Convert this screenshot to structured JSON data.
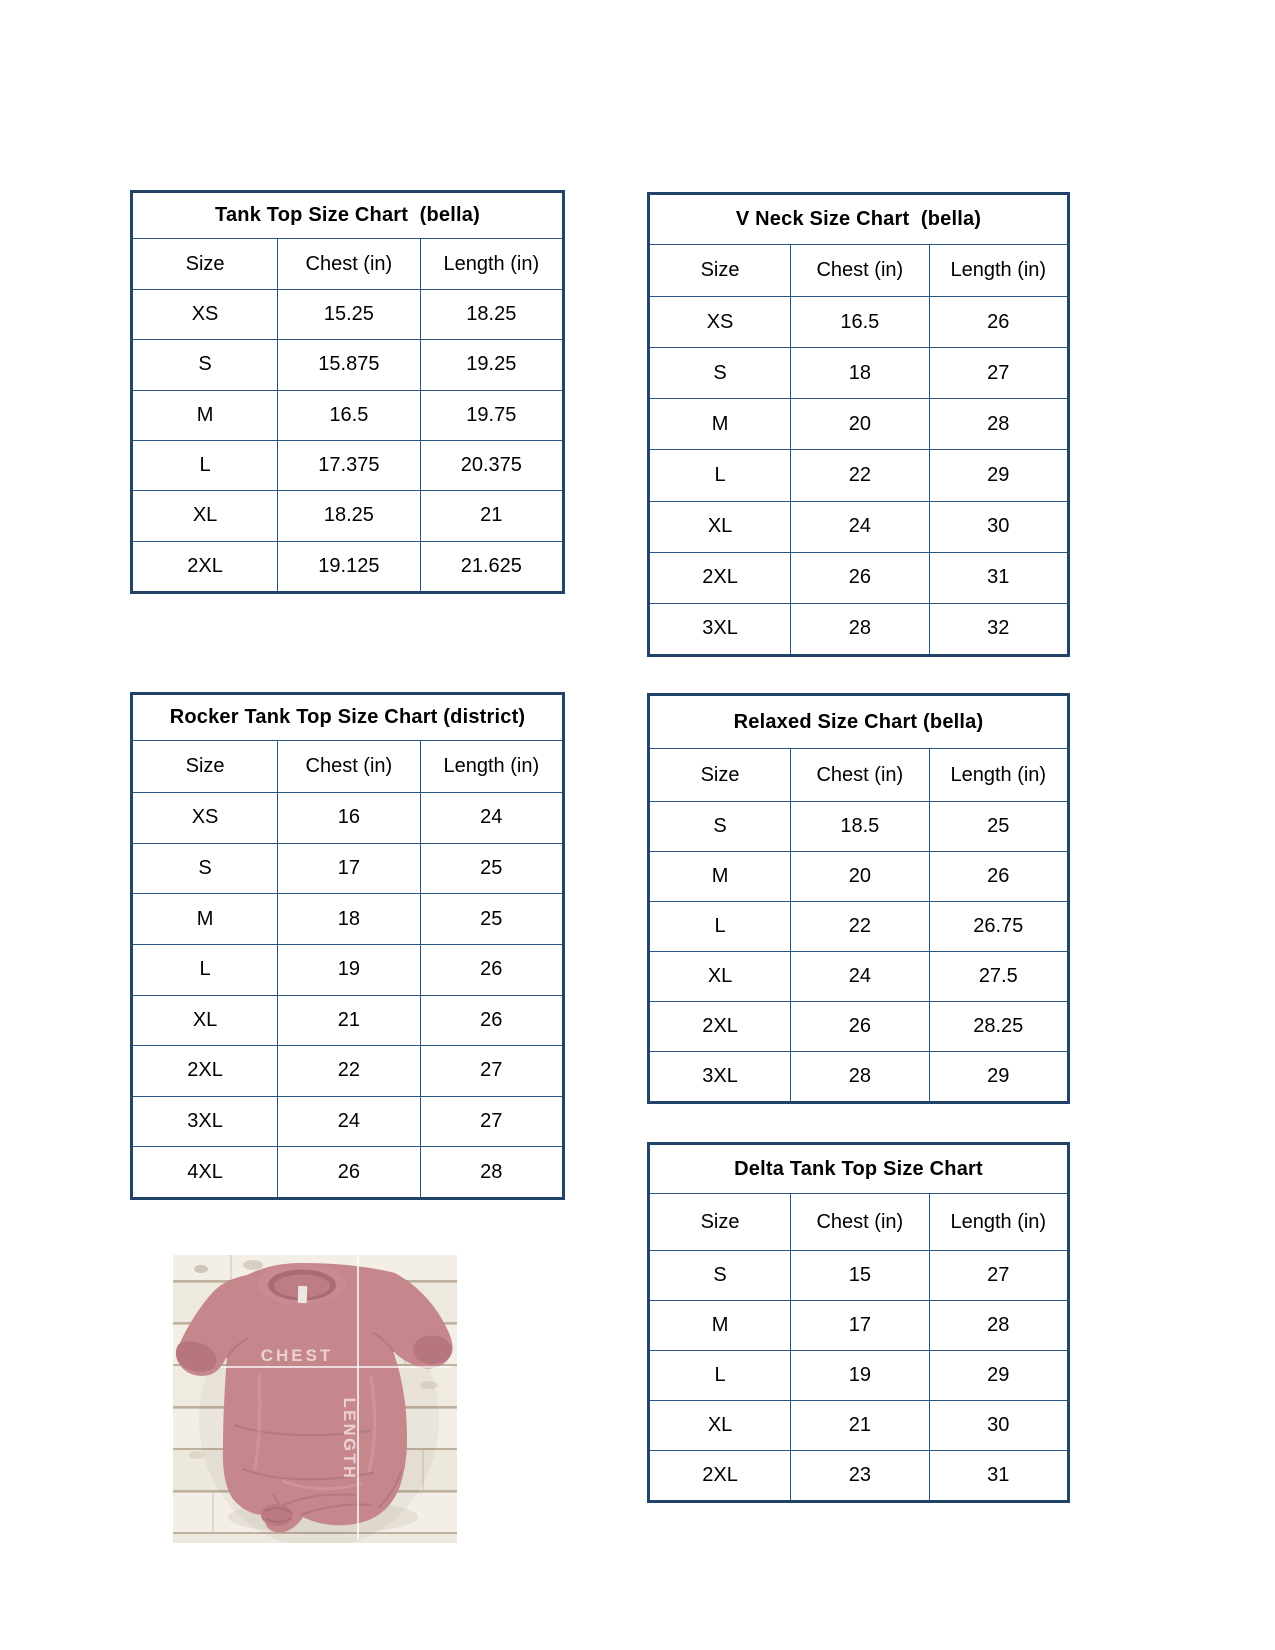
{
  "colors": {
    "table_border_outer": "#21456a",
    "table_border_inner": "#2b5584",
    "text": "#000000",
    "page_background": "#ffffff",
    "shirt_color": "#c5868c",
    "shirt_shadow": "#a86d76",
    "wood_color": "#f3efe7",
    "measure_line_color": "#ffffff"
  },
  "tables": [
    {
      "name": "tank-top-bella",
      "title": "Tank Top Size Chart  (bella)",
      "headers": [
        "Size",
        "Chest (in)",
        "Length (in)"
      ],
      "rows": [
        [
          "XS",
          "15.25",
          "18.25"
        ],
        [
          "S",
          "15.875",
          "19.25"
        ],
        [
          "M",
          "16.5",
          "19.75"
        ],
        [
          "L",
          "17.375",
          "20.375"
        ],
        [
          "XL",
          "18.25",
          "21"
        ],
        [
          "2XL",
          "19.125",
          "21.625"
        ]
      ]
    },
    {
      "name": "v-neck-bella",
      "title": "V Neck Size Chart  (bella)",
      "headers": [
        "Size",
        "Chest (in)",
        "Length (in)"
      ],
      "rows": [
        [
          "XS",
          "16.5",
          "26"
        ],
        [
          "S",
          "18",
          "27"
        ],
        [
          "M",
          "20",
          "28"
        ],
        [
          "L",
          "22",
          "29"
        ],
        [
          "XL",
          "24",
          "30"
        ],
        [
          "2XL",
          "26",
          "31"
        ],
        [
          "3XL",
          "28",
          "32"
        ]
      ]
    },
    {
      "name": "rocker-tank-top-district",
      "title": "Rocker Tank Top Size Chart (district)",
      "headers": [
        "Size",
        "Chest (in)",
        "Length (in)"
      ],
      "rows": [
        [
          "XS",
          "16",
          "24"
        ],
        [
          "S",
          "17",
          "25"
        ],
        [
          "M",
          "18",
          "25"
        ],
        [
          "L",
          "19",
          "26"
        ],
        [
          "XL",
          "21",
          "26"
        ],
        [
          "2XL",
          "22",
          "27"
        ],
        [
          "3XL",
          "24",
          "27"
        ],
        [
          "4XL",
          "26",
          "28"
        ]
      ]
    },
    {
      "name": "relaxed-bella",
      "title": "Relaxed Size Chart (bella)",
      "headers": [
        "Size",
        "Chest (in)",
        "Length (in)"
      ],
      "rows": [
        [
          "S",
          "18.5",
          "25"
        ],
        [
          "M",
          "20",
          "26"
        ],
        [
          "L",
          "22",
          "26.75"
        ],
        [
          "XL",
          "24",
          "27.5"
        ],
        [
          "2XL",
          "26",
          "28.25"
        ],
        [
          "3XL",
          "28",
          "29"
        ]
      ]
    },
    {
      "name": "delta-tank-top",
      "title": "Delta Tank Top Size Chart",
      "headers": [
        "Size",
        "Chest (in)",
        "Length (in)"
      ],
      "rows": [
        [
          "S",
          "15",
          "27"
        ],
        [
          "M",
          "17",
          "28"
        ],
        [
          "L",
          "19",
          "29"
        ],
        [
          "XL",
          "21",
          "30"
        ],
        [
          "2XL",
          "23",
          "31"
        ]
      ]
    }
  ],
  "photo": {
    "chest_label": "CHEST",
    "length_label": "LENGTH"
  }
}
